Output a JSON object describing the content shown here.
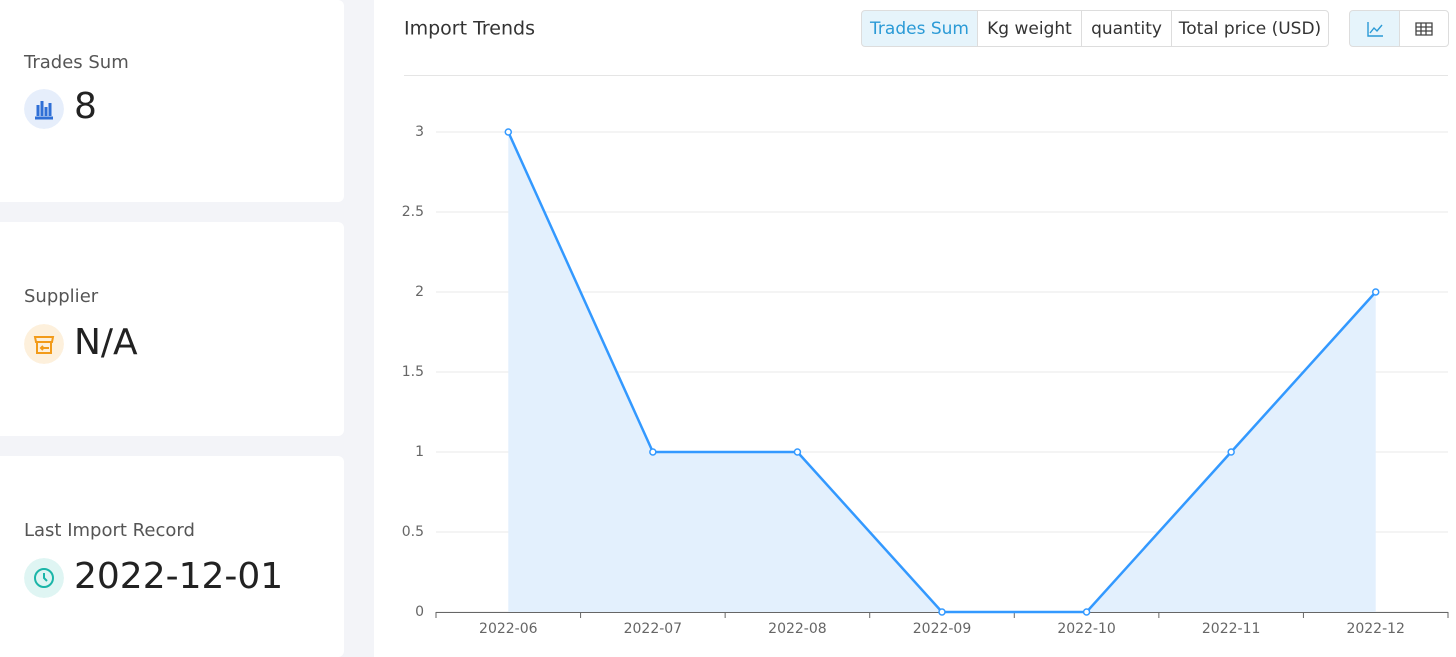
{
  "cards": [
    {
      "label": "Trades Sum",
      "value": "8"
    },
    {
      "label": "Supplier",
      "value": "N/A"
    },
    {
      "label": "Last Import Record",
      "value": "2022-12-01"
    }
  ],
  "toolbar": {
    "tabs": [
      "Trades Sum",
      "Kg weight",
      "quantity",
      "Total price (USD)"
    ],
    "active": "Trades Sum"
  },
  "chart_data": {
    "type": "line",
    "title": "Import Trends",
    "categories": [
      "2022-06",
      "2022-07",
      "2022-08",
      "2022-09",
      "2022-10",
      "2022-11",
      "2022-12"
    ],
    "values": [
      3,
      1,
      1,
      0,
      0,
      1,
      2
    ],
    "color": "#3399ff",
    "area": true,
    "ylim": [
      0,
      3
    ],
    "yticks": [
      0,
      0.5,
      1,
      1.5,
      2,
      2.5,
      3
    ],
    "grid": true
  }
}
